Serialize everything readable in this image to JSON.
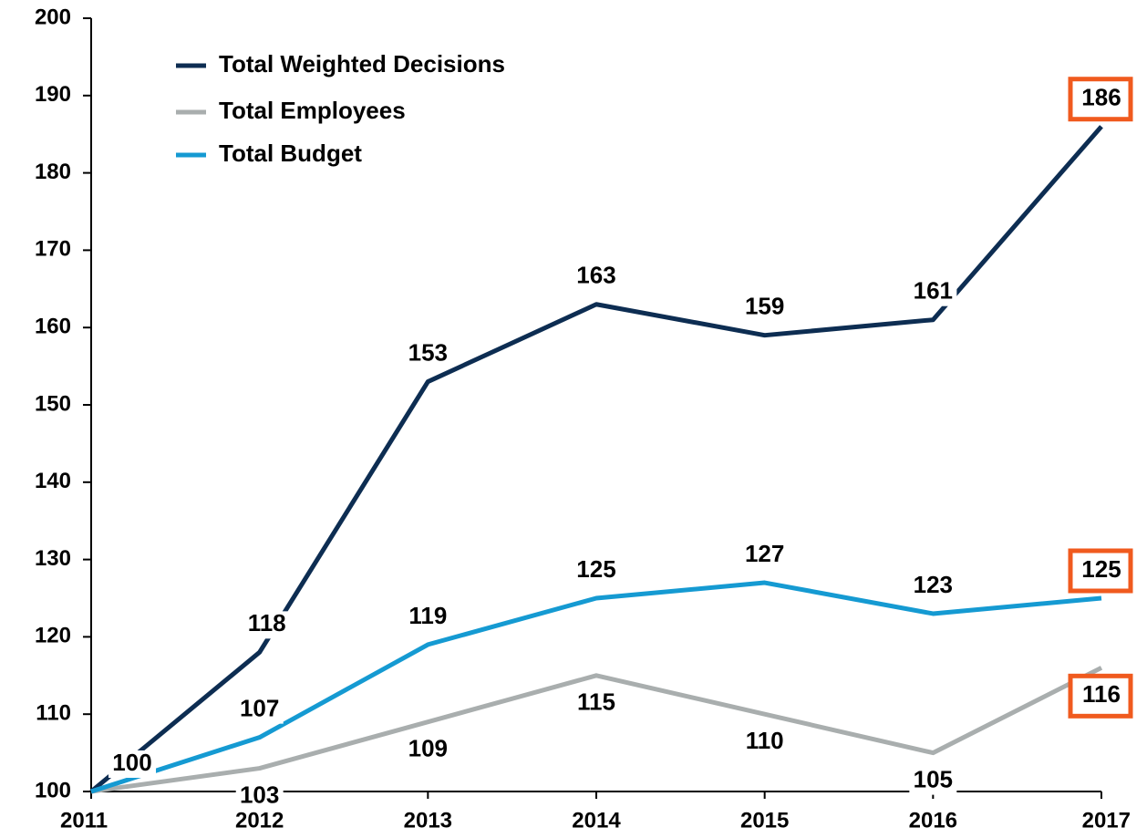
{
  "chart_data": {
    "type": "line",
    "x": [
      2011,
      2012,
      2013,
      2014,
      2015,
      2016,
      2017
    ],
    "xlim": [
      2011,
      2017
    ],
    "xticks": [
      2011,
      2012,
      2013,
      2014,
      2015,
      2016,
      2017
    ],
    "ylim": [
      100,
      200
    ],
    "yticks": [
      100,
      110,
      120,
      130,
      140,
      150,
      160,
      170,
      180,
      190,
      200
    ],
    "grid": false,
    "legend": "upper left",
    "highlight_color": "#f05a1e",
    "highlight_last": true,
    "series": [
      {
        "name": "Total Weighted Decisions",
        "color": "#0d2d52",
        "values": [
          100,
          118,
          153,
          163,
          159,
          161,
          186
        ],
        "value_labels": [
          "100",
          "118",
          "153",
          "163",
          "159",
          "161",
          "186"
        ]
      },
      {
        "name": "Total Employees",
        "color": "#a9aeae",
        "values": [
          100,
          103,
          109,
          115,
          110,
          105,
          116
        ],
        "value_labels": [
          null,
          "103",
          "109",
          "115",
          "110",
          "105",
          "116"
        ]
      },
      {
        "name": "Total Budget",
        "color": "#159ad2",
        "values": [
          100,
          107,
          119,
          125,
          127,
          123,
          125
        ],
        "value_labels": [
          null,
          "107",
          "119",
          "125",
          "127",
          "123",
          "125"
        ]
      }
    ]
  }
}
